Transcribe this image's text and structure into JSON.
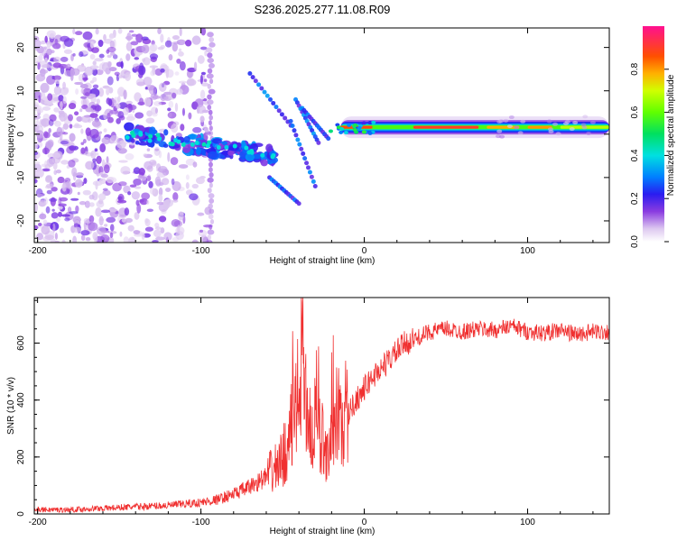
{
  "figure": {
    "title": "S236.2025.277.11.08.R09"
  },
  "chart_data": [
    {
      "type": "heatmap",
      "title": "S236.2025.277.11.08.R09",
      "xlabel": "Height of straight line (km)",
      "ylabel": "Frequency (Hz)",
      "xlim": [
        -202,
        150
      ],
      "ylim": [
        -25,
        24.5
      ],
      "xticks": [
        -200,
        -100,
        0,
        100
      ],
      "yticks": [
        -20,
        -10,
        0,
        10,
        20
      ],
      "colorbar": {
        "label": "Normalized spectral amplitude",
        "range": [
          0,
          1
        ],
        "ticks": [
          0.0,
          0.2,
          0.4,
          0.6,
          0.8
        ],
        "tick_labels": [
          "0.0",
          "0.2",
          "0.4",
          "0.6",
          "0.8"
        ]
      },
      "features": {
        "scatter_region_x": [
          -202,
          -95
        ],
        "scatter_region_freq": [
          -25,
          24
        ],
        "descending_band_x": [
          -145,
          -55
        ],
        "descending_band_freq": [
          0,
          -5
        ],
        "steady_band_x": [
          -20,
          150
        ],
        "steady_band_freq": 1.6,
        "peak_amplitude": 0.95
      }
    },
    {
      "type": "line",
      "xlabel": "Height of straight line (km)",
      "ylabel": "SNR (10 * v/v)",
      "xlim": [
        -202,
        150
      ],
      "ylim": [
        0,
        760
      ],
      "xticks": [
        -200,
        -100,
        0,
        100
      ],
      "yticks": [
        0,
        200,
        400,
        600
      ],
      "color": "#f03030",
      "series": [
        {
          "name": "SNR",
          "x": [
            -202,
            -180,
            -160,
            -140,
            -120,
            -100,
            -90,
            -80,
            -70,
            -60,
            -50,
            -45,
            -40,
            -38,
            -35,
            -32,
            -30,
            -25,
            -20,
            -15,
            -10,
            -5,
            0,
            5,
            10,
            15,
            20,
            25,
            30,
            40,
            50,
            60,
            70,
            80,
            90,
            100,
            110,
            120,
            130,
            140,
            150
          ],
          "y": [
            15,
            15,
            20,
            25,
            30,
            40,
            50,
            70,
            95,
            130,
            190,
            290,
            420,
            620,
            380,
            260,
            320,
            250,
            230,
            300,
            350,
            400,
            440,
            480,
            510,
            540,
            570,
            600,
            610,
            640,
            650,
            640,
            650,
            645,
            660,
            640,
            635,
            645,
            630,
            640,
            640
          ]
        }
      ]
    }
  ]
}
